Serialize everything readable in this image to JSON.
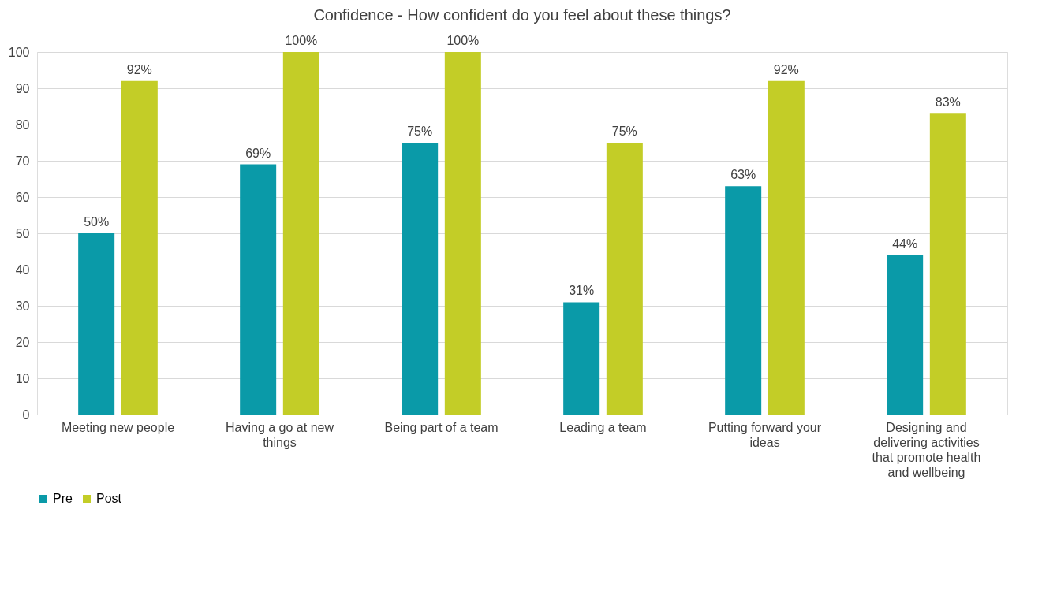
{
  "chart_data": {
    "type": "bar",
    "title": "Confidence - How confident do you feel about these things?",
    "categories": [
      "Meeting new people",
      "Having a go at new things",
      "Being part of a team",
      "Leading a team",
      "Putting forward your ideas",
      "Designing and delivering activities that promote health and wellbeing"
    ],
    "series": [
      {
        "name": "Pre",
        "color": "#0a9aa8",
        "values": [
          50,
          69,
          75,
          31,
          63,
          44
        ],
        "value_labels": [
          "50%",
          "69%",
          "75%",
          "31%",
          "63%",
          "44%"
        ]
      },
      {
        "name": "Post",
        "color": "#c3cd27",
        "values": [
          92,
          100,
          100,
          75,
          92,
          83
        ],
        "value_labels": [
          "92%",
          "100%",
          "100%",
          "75%",
          "92%",
          "83%"
        ]
      }
    ],
    "ylim": [
      0,
      100
    ],
    "yticks": [
      0,
      10,
      20,
      30,
      40,
      50,
      60,
      70,
      80,
      90,
      100
    ],
    "grid": "y",
    "legend": "bottom"
  }
}
